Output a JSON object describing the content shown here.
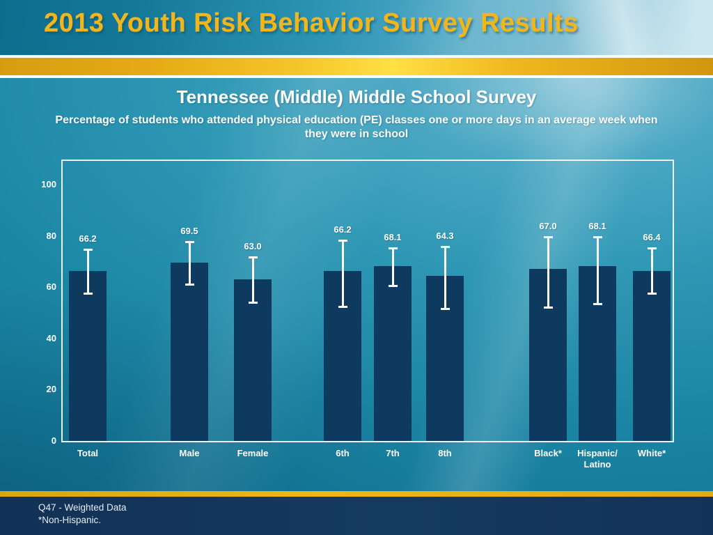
{
  "header": {
    "title": "2013 Youth Risk Behavior Survey Results"
  },
  "chart_data": {
    "type": "bar",
    "title": "Tennessee (Middle) Middle School Survey",
    "subtitle": "Percentage of students who attended physical education (PE) classes one or more days in an average week when they were in school",
    "categories": [
      "Total",
      "Male",
      "Female",
      "6th",
      "7th",
      "8th",
      "Black*",
      "Hispanic/Latino",
      "White*"
    ],
    "values": [
      66.2,
      69.5,
      63.0,
      66.2,
      68.1,
      64.3,
      67.0,
      68.1,
      66.4
    ],
    "error_low": [
      57.0,
      60.5,
      53.5,
      52.0,
      60.0,
      51.0,
      51.5,
      53.0,
      57.0
    ],
    "error_high": [
      75.0,
      78.0,
      72.0,
      78.5,
      75.5,
      76.0,
      80.0,
      80.0,
      75.5
    ],
    "xlabel": "",
    "ylabel": "",
    "ylim": [
      0,
      100
    ],
    "yticks": [
      0,
      20,
      40,
      60,
      80,
      100
    ],
    "grid": false,
    "legend": null,
    "bar_color": "#0d3a5e",
    "error_bar_color": "#ffffff"
  },
  "footer": {
    "line1": "Q47 - Weighted Data",
    "line2": "*Non-Hispanic."
  },
  "colors": {
    "header_title_gold": "#f2b61c",
    "gold_accent": "#eeb618",
    "footer_navy": "#14365c",
    "slide_teal": "#1c86a5",
    "text_white": "#ffffff"
  }
}
